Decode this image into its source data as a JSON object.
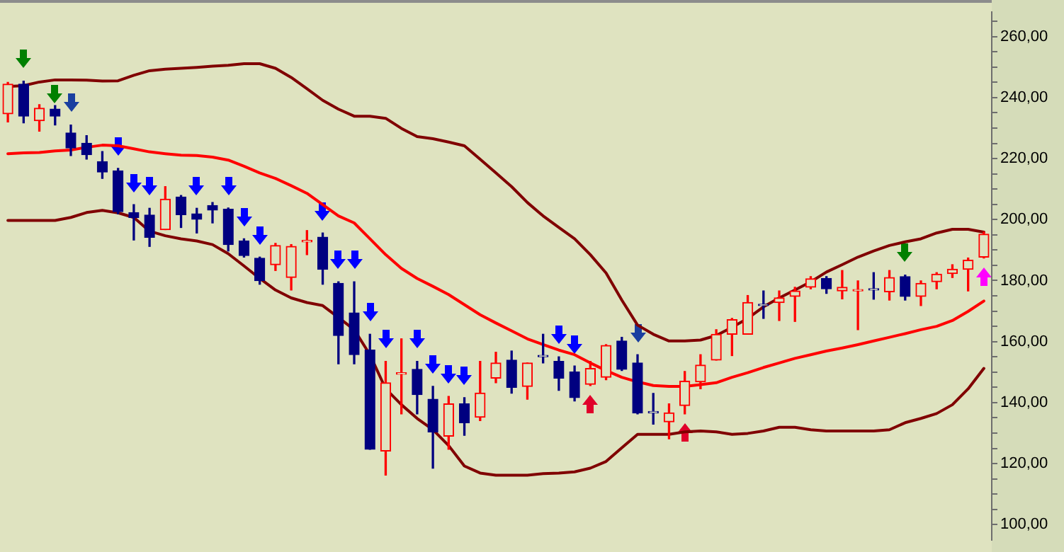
{
  "chart_data": {
    "type": "candlestick",
    "categories": [
      null,
      null,
      null,
      null,
      null,
      null,
      null,
      null,
      null,
      null,
      null,
      null,
      null,
      null,
      null,
      null,
      null,
      null,
      null,
      null,
      null,
      null,
      null,
      null,
      null,
      null,
      null,
      null,
      null,
      null,
      null,
      null,
      null,
      null,
      null,
      null,
      null,
      null,
      null,
      null,
      null,
      null,
      null,
      null,
      null,
      null,
      null,
      null,
      null,
      null,
      null,
      null,
      null,
      null,
      null,
      null,
      null,
      null,
      null,
      null,
      null,
      null,
      null
    ],
    "ohlc": [
      [
        234.7,
        245,
        232,
        244.4
      ],
      [
        244.4,
        245.4,
        231.7,
        233.9
      ],
      [
        232.4,
        237.7,
        229,
        236.5
      ],
      [
        236.2,
        237.4,
        231,
        233.9
      ],
      [
        228.4,
        231,
        221,
        223.5
      ],
      [
        225,
        227.5,
        219.8,
        221.3
      ],
      [
        219,
        222.3,
        213.5,
        215.6
      ],
      [
        216,
        216.8,
        201.9,
        202.6
      ],
      [
        202.3,
        204.9,
        193.3,
        200.7
      ],
      [
        201.5,
        203.7,
        191.2,
        194.2
      ],
      [
        196.7,
        210.8,
        196.7,
        206.7
      ],
      [
        207.4,
        207.9,
        197.4,
        201.6
      ],
      [
        201.9,
        203.7,
        195.6,
        200.1
      ],
      [
        204.6,
        205.6,
        198.9,
        203.1
      ],
      [
        203.4,
        203.8,
        189.7,
        191.8
      ],
      [
        193,
        193.7,
        187.7,
        188.2
      ],
      [
        187.3,
        187.7,
        178.8,
        180
      ],
      [
        185.2,
        192.2,
        183.3,
        191.5
      ],
      [
        181,
        191.8,
        176.9,
        191.2
      ],
      [
        192.7,
        196.4,
        188.5,
        192.7
      ],
      [
        194.2,
        195.6,
        178.8,
        183.7
      ],
      [
        179.1,
        179.6,
        152.7,
        162
      ],
      [
        169.4,
        179.6,
        152.7,
        155.7
      ],
      [
        157.2,
        162.4,
        124.7,
        124.7
      ],
      [
        124.1,
        153.5,
        116.2,
        146.5
      ],
      [
        149.3,
        160.9,
        136.3,
        149.3
      ],
      [
        150.9,
        153.5,
        136.3,
        142.6
      ],
      [
        141.1,
        145.3,
        118.5,
        130.4
      ],
      [
        129,
        142,
        124.7,
        139.6
      ],
      [
        139.6,
        141.6,
        129.3,
        133.4
      ],
      [
        135.2,
        153.5,
        134.1,
        143.1
      ],
      [
        148,
        156.5,
        146.5,
        153
      ],
      [
        153.9,
        156.9,
        143.1,
        145
      ],
      [
        145.3,
        153,
        141.1,
        153
      ],
      [
        155,
        162.4,
        153,
        155
      ],
      [
        153.5,
        155,
        144,
        148
      ],
      [
        150,
        152,
        140.5,
        141.6
      ],
      [
        146,
        153.5,
        145.6,
        151.2
      ],
      [
        148.3,
        159,
        147.5,
        158.7
      ],
      [
        160.2,
        161.4,
        150.5,
        150.9
      ],
      [
        153,
        155.7,
        136.3,
        136.6
      ],
      [
        136.6,
        143,
        132.9,
        136.6
      ],
      [
        133.7,
        139.6,
        128.1,
        136.6
      ],
      [
        139,
        150.2,
        136.3,
        147
      ],
      [
        146.8,
        155.7,
        144.5,
        152.3
      ],
      [
        153.9,
        163.9,
        153.9,
        162.4
      ],
      [
        162.4,
        167.6,
        155.4,
        167.2
      ],
      [
        162.4,
        175.1,
        162.4,
        172.8
      ],
      [
        171.8,
        176.6,
        167.6,
        171.8
      ],
      [
        172.8,
        176.6,
        166.9,
        174.3
      ],
      [
        174.8,
        177.8,
        166.6,
        176.6
      ],
      [
        177.8,
        181.3,
        177.3,
        180.6
      ],
      [
        180.7,
        181.3,
        175.8,
        177.3
      ],
      [
        176.6,
        183.3,
        174,
        177.8
      ],
      [
        176.6,
        179.9,
        163.9,
        176.6
      ],
      [
        176.9,
        182.6,
        173.9,
        176.9
      ],
      [
        176.3,
        183.3,
        173.6,
        181
      ],
      [
        181.3,
        181.8,
        173.6,
        174.8
      ],
      [
        174.8,
        179.9,
        171.8,
        179.1
      ],
      [
        179.6,
        182.6,
        177.3,
        182.1
      ],
      [
        182.3,
        185.2,
        181,
        183.7
      ],
      [
        183.7,
        187.4,
        176.6,
        186.7
      ],
      [
        187.7,
        195.9,
        187.4,
        195.2
      ]
    ],
    "colors": [
      "#ff0000",
      "#000080",
      "#ff0000",
      "#000080",
      "#000080",
      "#000080",
      "#000080",
      "#000080",
      "#000080",
      "#000080",
      "#ff0000",
      "#000080",
      "#000080",
      "#000080",
      "#000080",
      "#000080",
      "#000080",
      "#ff0000",
      "#ff0000",
      "#ff0000",
      "#000080",
      "#000080",
      "#000080",
      "#000080",
      "#ff0000",
      "#ff0000",
      "#000080",
      "#000080",
      "#ff0000",
      "#000080",
      "#ff0000",
      "#ff0000",
      "#000080",
      "#ff0000",
      "#000080",
      "#000080",
      "#000080",
      "#ff0000",
      "#ff0000",
      "#000080",
      "#000080",
      "#000080",
      "#ff0000",
      "#ff0000",
      "#ff0000",
      "#ff0000",
      "#ff0000",
      "#ff0000",
      "#000080",
      "#ff0000",
      "#ff0000",
      "#ff0000",
      "#000080",
      "#ff0000",
      "#ff0000",
      "#000080",
      "#ff0000",
      "#000080",
      "#ff0000",
      "#ff0000",
      "#ff0000",
      "#ff0000",
      "#ff0000"
    ],
    "series": [
      {
        "type": "line",
        "color": "#800000",
        "values": [
          243.6,
          243.9,
          245.1,
          245.8,
          245.8,
          245.7,
          245.4,
          245.5,
          247.3,
          248.8,
          249.3,
          249.6,
          249.9,
          250.3,
          250.6,
          251.1,
          251.1,
          249.6,
          246.6,
          242.9,
          239.1,
          236.2,
          233.9,
          233.9,
          233.2,
          229.9,
          227.2,
          226.5,
          225.4,
          224.2,
          219.8,
          215.3,
          210.8,
          205.6,
          201.2,
          197.4,
          193.7,
          188.5,
          182.5,
          173.6,
          165.4,
          162.4,
          160.2,
          160.2,
          160.5,
          162,
          164.7,
          167.6,
          171.4,
          174.3,
          176.9,
          179.6,
          182.8,
          185.2,
          187.7,
          189.7,
          191.5,
          192.7,
          193.7,
          195.6,
          196.8,
          196.8,
          195.9
        ]
      },
      {
        "type": "line",
        "color": "#ff0000",
        "values": [
          221.6,
          221.9,
          222,
          222.5,
          222.8,
          223.7,
          224.4,
          224.2,
          223.2,
          222.2,
          221.6,
          221.1,
          221,
          220.5,
          219.5,
          217.5,
          215.3,
          213.5,
          211.1,
          208.6,
          204.9,
          201.2,
          198.9,
          193.7,
          188.5,
          184,
          180.7,
          178.1,
          175.4,
          172.1,
          168.8,
          166.1,
          163.5,
          160.9,
          159,
          157.2,
          155.7,
          153,
          150.5,
          148.3,
          146.8,
          145.6,
          145.3,
          145.3,
          145.9,
          146.5,
          148.3,
          149.8,
          151.5,
          153,
          154.5,
          155.7,
          156.9,
          157.9,
          159,
          160.2,
          161.4,
          162.6,
          163.9,
          165,
          166.9,
          169.9,
          173.3
        ]
      },
      {
        "type": "line",
        "color": "#800000",
        "values": [
          199.7,
          199.7,
          199.7,
          199.7,
          200.7,
          202.3,
          203,
          202.2,
          200.7,
          196.2,
          194.7,
          193.7,
          193,
          191.8,
          188.8,
          184.8,
          180.7,
          176.9,
          174.3,
          172.8,
          171.8,
          167.9,
          163.9,
          155.7,
          144.5,
          139.3,
          134.8,
          131.1,
          125.9,
          119.2,
          116.9,
          116.2,
          116.2,
          116.2,
          116.7,
          116.9,
          117.3,
          118.5,
          120.7,
          125.2,
          129.6,
          129.6,
          129.6,
          130.4,
          130.7,
          130.4,
          129.6,
          129.9,
          130.7,
          131.9,
          131.9,
          131.1,
          130.7,
          130.7,
          130.7,
          130.7,
          131.1,
          133.4,
          134.8,
          136.4,
          139.3,
          144.5,
          151.2
        ]
      }
    ],
    "ylim": [
      95,
      268
    ],
    "yticks": [
      {
        "value": 100,
        "label": "100,00"
      },
      {
        "value": 105,
        "label": null
      },
      {
        "value": 110,
        "label": null
      },
      {
        "value": 115,
        "label": null
      },
      {
        "value": 120,
        "label": "120,00"
      },
      {
        "value": 125,
        "label": null
      },
      {
        "value": 130,
        "label": null
      },
      {
        "value": 135,
        "label": null
      },
      {
        "value": 140,
        "label": "140,00"
      },
      {
        "value": 145,
        "label": null
      },
      {
        "value": 150,
        "label": null
      },
      {
        "value": 155,
        "label": null
      },
      {
        "value": 160,
        "label": "160,00"
      },
      {
        "value": 165,
        "label": null
      },
      {
        "value": 170,
        "label": null
      },
      {
        "value": 175,
        "label": null
      },
      {
        "value": 180,
        "label": "180,00"
      },
      {
        "value": 185,
        "label": null
      },
      {
        "value": 190,
        "label": null
      },
      {
        "value": 195,
        "label": null
      },
      {
        "value": 200,
        "label": "200,00"
      },
      {
        "value": 205,
        "label": null
      },
      {
        "value": 210,
        "label": null
      },
      {
        "value": 215,
        "label": null
      },
      {
        "value": 220,
        "label": "220,00"
      },
      {
        "value": 225,
        "label": null
      },
      {
        "value": 230,
        "label": null
      },
      {
        "value": 235,
        "label": null
      },
      {
        "value": 240,
        "label": "240,00"
      },
      {
        "value": 245,
        "label": null
      },
      {
        "value": 250,
        "label": null
      },
      {
        "value": 255,
        "label": null
      },
      {
        "value": 260,
        "label": "260,00"
      },
      {
        "value": 265,
        "label": null
      }
    ],
    "grid": false,
    "tick_labels": "y"
  }
}
